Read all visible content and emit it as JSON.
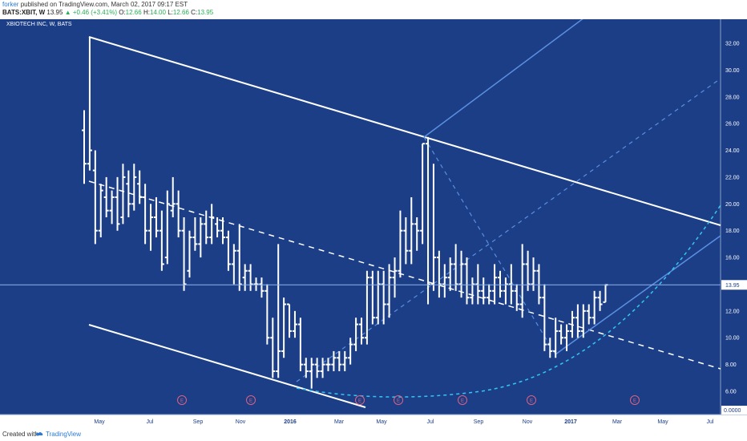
{
  "header": {
    "author": "forker",
    "published_text": "published on TradingView.com, March 02, 2017 09:17 EST",
    "symbol": "BATS:XBIT, W",
    "last": "13.95",
    "change": "▲ +0.46 (+3.41%)",
    "o_label": "O:",
    "o_value": "12.66",
    "h_label": "H:",
    "h_value": "14.00",
    "l_label": "L:",
    "l_value": "12.66",
    "c_label": "C:",
    "c_value": "13.95"
  },
  "footer": {
    "created_with": "Created with",
    "brand": "TradingView"
  },
  "colors": {
    "background": "#1c3e87",
    "bars": "#ffffff",
    "trendline": "#ffffff",
    "pitchfork": "#5b8fe0",
    "arc": "#33c6f2",
    "price_label_bg": "#ffffff"
  },
  "chart_data": {
    "type": "ohlc",
    "title": "XBIOTECH INC, W, BATS",
    "ylim": [
      0,
      35
    ],
    "y_ticks": [
      "32.00",
      "30.00",
      "28.00",
      "26.00",
      "24.00",
      "22.00",
      "20.00",
      "18.00",
      "16.00",
      "14.00",
      "12.00",
      "10.00",
      "8.00",
      "6.00"
    ],
    "y_zero_label": "0.0000",
    "x_ticks": [
      "May",
      "Jul",
      "Sep",
      "Nov",
      "2016",
      "Mar",
      "May",
      "Jul",
      "Sep",
      "Nov",
      "2017",
      "Mar",
      "May",
      "Jul"
    ],
    "last_price_label": "13.95",
    "earnings_marker": "E",
    "earnings_count": 8,
    "bars": [
      [
        25.5,
        27.0,
        21.5,
        23.0
      ],
      [
        23.0,
        32.5,
        22.5,
        24.0
      ],
      [
        22.5,
        24.0,
        17.0,
        18.0
      ],
      [
        18.0,
        21.5,
        17.5,
        21.0
      ],
      [
        20.5,
        22.0,
        19.0,
        19.5
      ],
      [
        19.5,
        21.0,
        18.5,
        20.5
      ],
      [
        20.5,
        22.0,
        18.0,
        18.5
      ],
      [
        19.0,
        23.0,
        18.5,
        22.0
      ],
      [
        21.5,
        22.5,
        19.0,
        20.0
      ],
      [
        20.0,
        23.0,
        19.5,
        22.0
      ],
      [
        21.5,
        22.5,
        20.0,
        20.5
      ],
      [
        20.5,
        21.5,
        17.0,
        18.0
      ],
      [
        18.0,
        20.0,
        16.5,
        19.0
      ],
      [
        19.0,
        20.5,
        17.5,
        18.0
      ],
      [
        18.0,
        19.5,
        15.0,
        15.5
      ],
      [
        16.0,
        21.0,
        15.5,
        20.0
      ],
      [
        19.5,
        22.0,
        19.0,
        20.0
      ],
      [
        20.0,
        21.0,
        17.5,
        18.0
      ],
      [
        18.0,
        19.0,
        13.5,
        14.0
      ],
      [
        15.0,
        18.0,
        14.5,
        17.5
      ],
      [
        17.5,
        19.0,
        16.5,
        17.0
      ],
      [
        17.0,
        19.0,
        16.0,
        18.5
      ],
      [
        18.5,
        19.5,
        17.0,
        17.5
      ],
      [
        17.5,
        20.0,
        17.0,
        19.0
      ],
      [
        18.5,
        19.0,
        17.5,
        18.0
      ],
      [
        18.0,
        19.0,
        17.0,
        17.5
      ],
      [
        17.5,
        18.0,
        15.0,
        15.5
      ],
      [
        15.5,
        17.0,
        14.0,
        16.5
      ],
      [
        16.5,
        18.5,
        13.5,
        14.0
      ],
      [
        14.5,
        15.5,
        13.5,
        15.0
      ],
      [
        15.0,
        15.5,
        13.5,
        14.0
      ],
      [
        14.0,
        14.5,
        13.5,
        14.0
      ],
      [
        14.0,
        14.5,
        13.0,
        13.5
      ],
      [
        13.5,
        14.0,
        9.5,
        10.0
      ],
      [
        10.0,
        11.5,
        7.0,
        7.5
      ],
      [
        7.5,
        17.0,
        7.0,
        9.0
      ],
      [
        9.0,
        13.0,
        8.5,
        12.5
      ],
      [
        12.5,
        12.5,
        10.0,
        10.5
      ],
      [
        10.5,
        12.0,
        10.0,
        11.0
      ],
      [
        11.0,
        11.5,
        7.5,
        8.0
      ],
      [
        8.0,
        8.5,
        7.0,
        7.5
      ],
      [
        7.5,
        8.5,
        6.2,
        8.0
      ],
      [
        8.0,
        8.5,
        7.0,
        7.5
      ],
      [
        7.5,
        8.5,
        7.0,
        8.0
      ],
      [
        8.0,
        8.5,
        7.5,
        8.0
      ],
      [
        8.0,
        9.0,
        7.5,
        8.5
      ],
      [
        8.5,
        9.0,
        7.5,
        8.0
      ],
      [
        8.0,
        9.0,
        7.5,
        8.5
      ],
      [
        8.5,
        10.0,
        8.0,
        9.5
      ],
      [
        9.5,
        11.5,
        9.0,
        11.0
      ],
      [
        11.0,
        11.5,
        9.5,
        10.0
      ],
      [
        10.0,
        15.0,
        9.5,
        14.5
      ],
      [
        14.5,
        15.0,
        11.0,
        11.5
      ],
      [
        11.5,
        15.0,
        11.0,
        14.0
      ],
      [
        14.0,
        15.0,
        11.0,
        12.5
      ],
      [
        12.5,
        15.5,
        11.5,
        14.5
      ],
      [
        14.5,
        16.0,
        13.0,
        15.0
      ],
      [
        15.0,
        19.5,
        14.5,
        18.0
      ],
      [
        18.0,
        19.0,
        15.5,
        16.5
      ],
      [
        16.5,
        20.5,
        15.5,
        18.5
      ],
      [
        18.5,
        19.0,
        16.5,
        18.0
      ],
      [
        18.0,
        24.5,
        17.0,
        24.5
      ],
      [
        24.5,
        25.0,
        12.5,
        14.0
      ],
      [
        14.0,
        23.0,
        13.5,
        16.0
      ],
      [
        16.0,
        16.5,
        13.0,
        14.0
      ],
      [
        14.0,
        15.5,
        13.0,
        14.5
      ],
      [
        14.5,
        16.0,
        13.5,
        15.5
      ],
      [
        15.5,
        17.0,
        13.5,
        14.0
      ],
      [
        14.0,
        16.5,
        13.0,
        15.5
      ],
      [
        15.5,
        16.0,
        12.5,
        13.0
      ],
      [
        13.0,
        14.5,
        12.5,
        14.0
      ],
      [
        14.0,
        15.5,
        12.5,
        13.5
      ],
      [
        13.5,
        14.5,
        12.5,
        13.0
      ],
      [
        13.0,
        14.0,
        12.5,
        13.5
      ],
      [
        13.5,
        15.5,
        12.5,
        14.5
      ],
      [
        14.5,
        15.0,
        13.0,
        13.5
      ],
      [
        13.5,
        14.5,
        12.5,
        14.0
      ],
      [
        14.0,
        15.5,
        12.5,
        13.5
      ],
      [
        13.5,
        14.0,
        12.0,
        12.5
      ],
      [
        12.5,
        17.0,
        11.5,
        15.5
      ],
      [
        15.5,
        16.5,
        13.5,
        14.0
      ],
      [
        14.0,
        16.0,
        13.5,
        15.0
      ],
      [
        15.0,
        15.5,
        12.5,
        13.0
      ],
      [
        13.0,
        14.0,
        9.0,
        9.5
      ],
      [
        9.5,
        10.0,
        8.5,
        9.0
      ],
      [
        9.0,
        11.5,
        8.5,
        10.5
      ],
      [
        10.5,
        11.0,
        9.5,
        10.0
      ],
      [
        10.0,
        11.0,
        9.0,
        10.5
      ],
      [
        10.5,
        12.0,
        10.0,
        11.5
      ],
      [
        11.5,
        12.5,
        10.0,
        10.5
      ],
      [
        10.5,
        12.5,
        10.0,
        12.0
      ],
      [
        12.0,
        12.5,
        11.0,
        11.5
      ],
      [
        11.5,
        13.5,
        11.0,
        13.0
      ],
      [
        13.0,
        13.5,
        12.0,
        12.5
      ],
      [
        12.66,
        14.0,
        12.66,
        13.95
      ]
    ]
  }
}
